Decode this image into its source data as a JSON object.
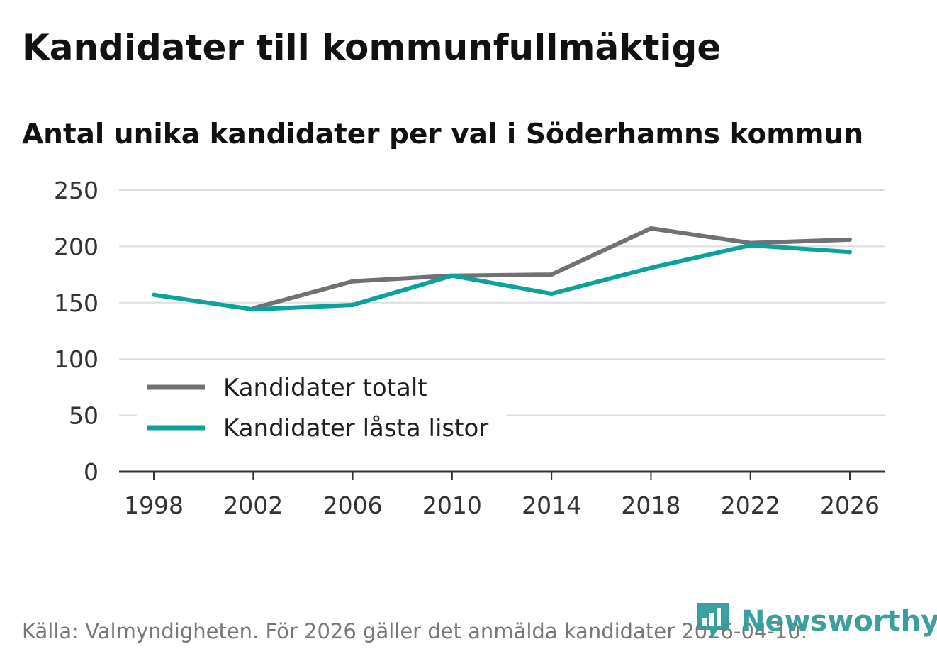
{
  "title": "Kandidater till kommunfullmäktige",
  "subtitle": "Antal unika kandidater per val i Söderhamns kommun",
  "footer": "Källa: Valmyndigheten. För 2026 gäller det anmälda kandidater 2026-04-10.",
  "brand": {
    "name": "Newsworthy",
    "icon": "newsworthy-logo-icon",
    "color": "#2f9b98"
  },
  "chart_data": {
    "type": "line",
    "title": "Kandidater till kommunfullmäktige",
    "subtitle": "Antal unika kandidater per val i Söderhamns kommun",
    "xlabel": "",
    "ylabel": "",
    "x": [
      "1998",
      "2002",
      "2006",
      "2010",
      "2014",
      "2018",
      "2022",
      "2026"
    ],
    "ylim": [
      0,
      250
    ],
    "yticks": [
      "0",
      "50",
      "100",
      "150",
      "200",
      "250"
    ],
    "ytick_values": [
      0,
      50,
      100,
      150,
      200,
      250
    ],
    "grid": true,
    "legend_position": "bottom-left",
    "series": [
      {
        "name": "Kandidater totalt",
        "color": "#717075",
        "values": [
          null,
          145,
          169,
          174,
          175,
          216,
          203,
          206
        ]
      },
      {
        "name": "Kandidater låsta listor",
        "color": "#0aa29a",
        "values": [
          157,
          144,
          148,
          174,
          158,
          181,
          201,
          195
        ]
      }
    ]
  }
}
